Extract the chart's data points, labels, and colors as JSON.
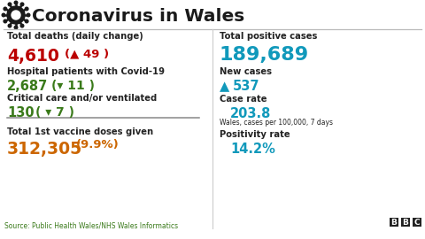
{
  "title": "Coronavirus in Wales",
  "bg_color": "#ffffff",
  "title_color": "#1a1a1a",
  "header_line_color": "#bbbbbb",
  "divider_line_color": "#cccccc",
  "left_col": {
    "label1": "Total deaths (daily change)",
    "val1": "4,610",
    "val1_change": "(▲ 49 )",
    "val1_color": "#bb0000",
    "val1_change_color": "#bb0000",
    "label2": "Hospital patients with Covid-19",
    "val2": "2,687",
    "val2_change": "(▾ 11 )",
    "val2_color": "#3a7a1a",
    "val2_change_color": "#3a7a1a",
    "label3": "Critical care and/or ventilated",
    "val3": "130",
    "val3_change": "( ▾ 7 )",
    "val3_color": "#3a7a1a",
    "val3_change_color": "#3a7a1a",
    "label4": "Total 1st vaccine doses given",
    "val4": "312,305",
    "val4_change": "(9.9%)",
    "val4_color": "#cc6600",
    "val4_change_color": "#cc6600"
  },
  "right_col": {
    "label1": "Total positive cases",
    "val1": "189,689",
    "val1_color": "#1199bb",
    "label2": "New cases",
    "val2_arrow": "▲",
    "val2": "537",
    "val2_color": "#1199bb",
    "label3": "Case rate",
    "val3": "203.8",
    "val3_sub": "Wales, cases per 100,000, 7 days",
    "val3_color": "#1199bb",
    "label4": "Positivity rate",
    "val4": "14.2%",
    "val4_color": "#1199bb"
  },
  "source": "Source: Public Health Wales/NHS Wales Informatics",
  "label_color": "#222222",
  "source_color": "#3a7a1a",
  "source_fontsize": 5.5,
  "label_fontsize": 7.2,
  "val_large_fontsize": 13.5,
  "val_medium_fontsize": 10.5,
  "val_xlarge_fontsize": 16.0,
  "change_fontsize": 9.5
}
